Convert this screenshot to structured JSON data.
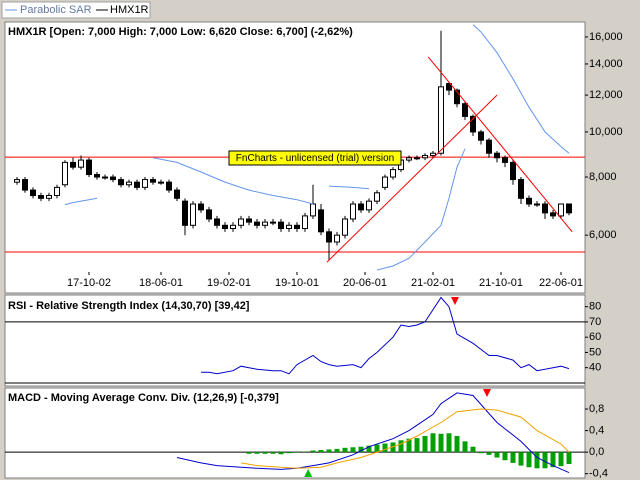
{
  "chart_data": [
    {
      "type": "candlestick",
      "name": "HMX1R",
      "title": "HMX1R [Open: 7,000  High: 7,000  Low: 6,620  Close: 6,700] (-2,62%)",
      "log_scale": true,
      "xlim": [
        -1.5,
        71
      ],
      "ylim": [
        5000,
        17230
      ],
      "yticks": [
        {
          "value": 6000,
          "label": "6,000"
        },
        {
          "value": 8000,
          "label": "8,000"
        },
        {
          "value": 10000,
          "label": "10,000"
        },
        {
          "value": 12000,
          "label": "12,000"
        },
        {
          "value": 14000,
          "label": "14,000"
        },
        {
          "value": 16000,
          "label": "16,000"
        }
      ],
      "xticks": [
        {
          "value": 9,
          "label": "17-10-02"
        },
        {
          "value": 18,
          "label": "18-06-01"
        },
        {
          "value": 26.5,
          "label": "19-02-01"
        },
        {
          "value": 35,
          "label": "19-10-01"
        },
        {
          "value": 43.5,
          "label": "20-06-01"
        },
        {
          "value": 52,
          "label": "21-02-01"
        },
        {
          "value": 60.5,
          "label": "21-10-01"
        },
        {
          "value": 68,
          "label": "22-06-01"
        }
      ],
      "open": [
        7800,
        7900,
        7500,
        7300,
        7200,
        7300,
        7700,
        8600,
        8400,
        8700,
        8100,
        8000,
        8000,
        7900,
        7700,
        7800,
        7600,
        7900,
        7800,
        7800,
        7500,
        7100,
        6300,
        7000,
        6800,
        6500,
        6300,
        6200,
        6300,
        6500,
        6400,
        6300,
        6400,
        6400,
        6200,
        6300,
        6200,
        6600,
        6800,
        6100,
        5800,
        6000,
        6500,
        7000,
        6800,
        7100,
        7600,
        8000,
        8300,
        8700,
        8800,
        8800,
        8900,
        9000,
        12700,
        12300,
        11500,
        10800,
        10000,
        9600,
        9000,
        8800,
        8600,
        7900,
        7200,
        7000,
        7000,
        6700,
        6600,
        7000
      ],
      "high": [
        8000,
        8000,
        7600,
        7400,
        7400,
        7700,
        8700,
        8800,
        8900,
        8800,
        8200,
        8100,
        8100,
        8000,
        7900,
        7900,
        8000,
        8000,
        7900,
        7900,
        7600,
        7200,
        7100,
        7100,
        6900,
        6600,
        6400,
        6400,
        6600,
        6600,
        6500,
        6500,
        6500,
        6500,
        6400,
        6400,
        6700,
        7700,
        7000,
        6200,
        6100,
        6600,
        7100,
        7100,
        7200,
        7500,
        8100,
        8400,
        8800,
        8900,
        8900,
        9000,
        9100,
        16500,
        12800,
        12400,
        11600,
        10900,
        10100,
        9700,
        9100,
        8900,
        8700,
        8000,
        7300,
        7100,
        7100,
        6800,
        7000,
        7000
      ],
      "low": [
        7700,
        7400,
        7200,
        7100,
        7100,
        7200,
        7600,
        8300,
        8300,
        8000,
        7900,
        7900,
        7800,
        7600,
        7600,
        7500,
        7500,
        7700,
        7700,
        7400,
        7100,
        6000,
        6200,
        6700,
        6400,
        6200,
        6100,
        6100,
        6200,
        6300,
        6200,
        6200,
        6300,
        6100,
        6100,
        6100,
        6100,
        6500,
        6000,
        5300,
        5700,
        5900,
        6400,
        6700,
        6700,
        7000,
        7500,
        7900,
        8200,
        8600,
        8700,
        8700,
        8800,
        8900,
        12000,
        11300,
        10600,
        9800,
        9400,
        8800,
        8600,
        8400,
        7700,
        7000,
        6900,
        6900,
        6500,
        6500,
        6500,
        6620
      ],
      "close": [
        7900,
        7500,
        7300,
        7200,
        7300,
        7600,
        8600,
        8400,
        8700,
        8100,
        8000,
        8000,
        7900,
        7700,
        7800,
        7600,
        7900,
        7800,
        7800,
        7500,
        7200,
        6300,
        7000,
        6800,
        6500,
        6300,
        6200,
        6300,
        6500,
        6400,
        6300,
        6400,
        6400,
        6200,
        6300,
        6200,
        6600,
        7000,
        6100,
        5800,
        6000,
        6500,
        7000,
        6800,
        7100,
        7400,
        8000,
        8300,
        8700,
        8800,
        8800,
        8900,
        9000,
        12500,
        12300,
        11500,
        10800,
        10000,
        9600,
        9000,
        8800,
        8600,
        7900,
        7200,
        7000,
        7000,
        6700,
        6600,
        7000,
        6700
      ],
      "series": [
        {
          "name": "Parabolic SAR",
          "color": "#6495ed",
          "x": [
            6,
            7,
            8,
            9,
            10,
            10.5,
            17,
            20,
            23,
            26,
            29,
            32,
            35,
            37,
            38,
            39,
            42,
            44,
            44.5,
            45,
            47,
            49,
            51,
            53,
            54,
            55,
            56,
            56.5,
            57,
            58,
            60,
            62,
            64,
            66,
            68,
            69
          ],
          "values": [
            6980,
            7050,
            7100,
            7150,
            7200,
            null,
            8800,
            8600,
            8200,
            7800,
            7500,
            7300,
            7150,
            7000,
            null,
            7650,
            7600,
            7550,
            null,
            5050,
            5150,
            5350,
            5800,
            6300,
            7200,
            8400,
            9200,
            null,
            17000,
            16400,
            14800,
            13000,
            11300,
            10000,
            9300,
            9000
          ]
        },
        {
          "color": "#ff0000",
          "x": [
            38.75,
            60
          ],
          "values": [
            5250,
            12000
          ]
        },
        {
          "color": "#ff0000",
          "x": [
            51.4,
            69.4
          ],
          "values": [
            14500,
            6100
          ]
        }
      ],
      "hlines": [
        8830,
        5520
      ],
      "hline_color": "#ff0000",
      "annotation": "FnCharts - unlicensed (trial) version"
    },
    {
      "type": "line",
      "title": "RSI - Relative Strength Index (14,30,70) [39,42]",
      "xlim": [
        -1.5,
        71
      ],
      "ylim": [
        28,
        87
      ],
      "yticks": [
        40,
        50,
        60,
        70,
        80
      ],
      "hlines": [
        70,
        30
      ],
      "hline_color": "#000000",
      "series": [
        {
          "color": "#0000cc",
          "x": [
            23,
            24,
            25,
            27,
            28,
            29,
            30,
            32,
            33,
            34,
            35,
            37,
            38,
            39,
            40,
            42,
            43,
            44,
            45,
            47,
            48,
            49,
            50,
            51,
            53,
            54,
            55,
            57,
            58,
            59,
            60,
            62,
            63,
            64,
            65,
            67,
            68,
            69
          ],
          "values": [
            37,
            37,
            36,
            38,
            41,
            40,
            39,
            38,
            38,
            36,
            42,
            48,
            44,
            42,
            41,
            42,
            40,
            46,
            50,
            60,
            68,
            67,
            68,
            70,
            86,
            80,
            62,
            56,
            52,
            48,
            48,
            45,
            40,
            42,
            38,
            40,
            41,
            39.42
          ]
        }
      ],
      "signals": [
        {
          "x": 54.75,
          "color": "#ff0000",
          "direction": "down"
        }
      ]
    },
    {
      "type": "line",
      "title": "MACD - Moving Average Conv. Div. (12,26,9) [-0,379]",
      "xlim": [
        -1.5,
        71
      ],
      "ylim": [
        -0.48,
        1.19
      ],
      "yticks": [
        {
          "value": -0.4,
          "label": "-0,4"
        },
        {
          "value": 0,
          "label": "0,0"
        },
        {
          "value": 0.4,
          "label": "0,4"
        },
        {
          "value": 0.8,
          "label": "0,8"
        }
      ],
      "hlines": [
        0
      ],
      "hline_color": "#000000",
      "series": [
        {
          "color": "#00a000",
          "style": "bar",
          "x": [
            29,
            30,
            31,
            32,
            33,
            34,
            35,
            36,
            37,
            38,
            39,
            40,
            41,
            42,
            43,
            44,
            45,
            46,
            47,
            48,
            49,
            50,
            51,
            52,
            53,
            54,
            55,
            56,
            57,
            58,
            59,
            60,
            61,
            62,
            63,
            64,
            65,
            66,
            67,
            68,
            69
          ],
          "values": [
            -0.03,
            -0.03,
            -0.03,
            -0.03,
            -0.04,
            -0.02,
            -0.01,
            0.01,
            0.03,
            0.04,
            0.05,
            0.06,
            0.08,
            0.09,
            0.1,
            0.12,
            0.14,
            0.16,
            0.18,
            0.22,
            0.25,
            0.26,
            0.3,
            0.35,
            0.34,
            0.35,
            0.3,
            0.2,
            0.1,
            -0.02,
            -0.05,
            -0.1,
            -0.15,
            -0.2,
            -0.25,
            -0.28,
            -0.3,
            -0.3,
            -0.28,
            -0.26,
            -0.22
          ]
        },
        {
          "color": "#0000cc",
          "x": [
            20,
            23,
            25,
            28,
            30,
            33,
            35,
            37,
            39,
            42,
            44,
            47,
            49,
            50,
            52,
            53,
            55,
            57,
            58.5,
            60,
            63,
            65,
            67,
            69
          ],
          "values": [
            -0.1,
            -0.2,
            -0.25,
            -0.28,
            -0.3,
            -0.32,
            -0.3,
            -0.25,
            -0.2,
            -0.05,
            0.1,
            0.25,
            0.4,
            0.5,
            0.7,
            0.9,
            1.1,
            1.05,
            0.8,
            0.55,
            0.2,
            -0.1,
            -0.25,
            -0.379
          ]
        },
        {
          "color": "#f0a000",
          "x": [
            28,
            30,
            33,
            35,
            38,
            40,
            43,
            45,
            48,
            50,
            53,
            55,
            58,
            60,
            63,
            65,
            68,
            69
          ],
          "values": [
            -0.2,
            -0.25,
            -0.28,
            -0.3,
            -0.28,
            -0.2,
            -0.1,
            0,
            0.15,
            0.3,
            0.55,
            0.75,
            0.8,
            0.78,
            0.65,
            0.4,
            0.15,
            0
          ]
        }
      ],
      "signals": [
        {
          "x": 36.4,
          "color": "#00c000",
          "direction": "up"
        },
        {
          "x": 58.75,
          "color": "#ff0000",
          "direction": "down"
        }
      ]
    }
  ]
}
